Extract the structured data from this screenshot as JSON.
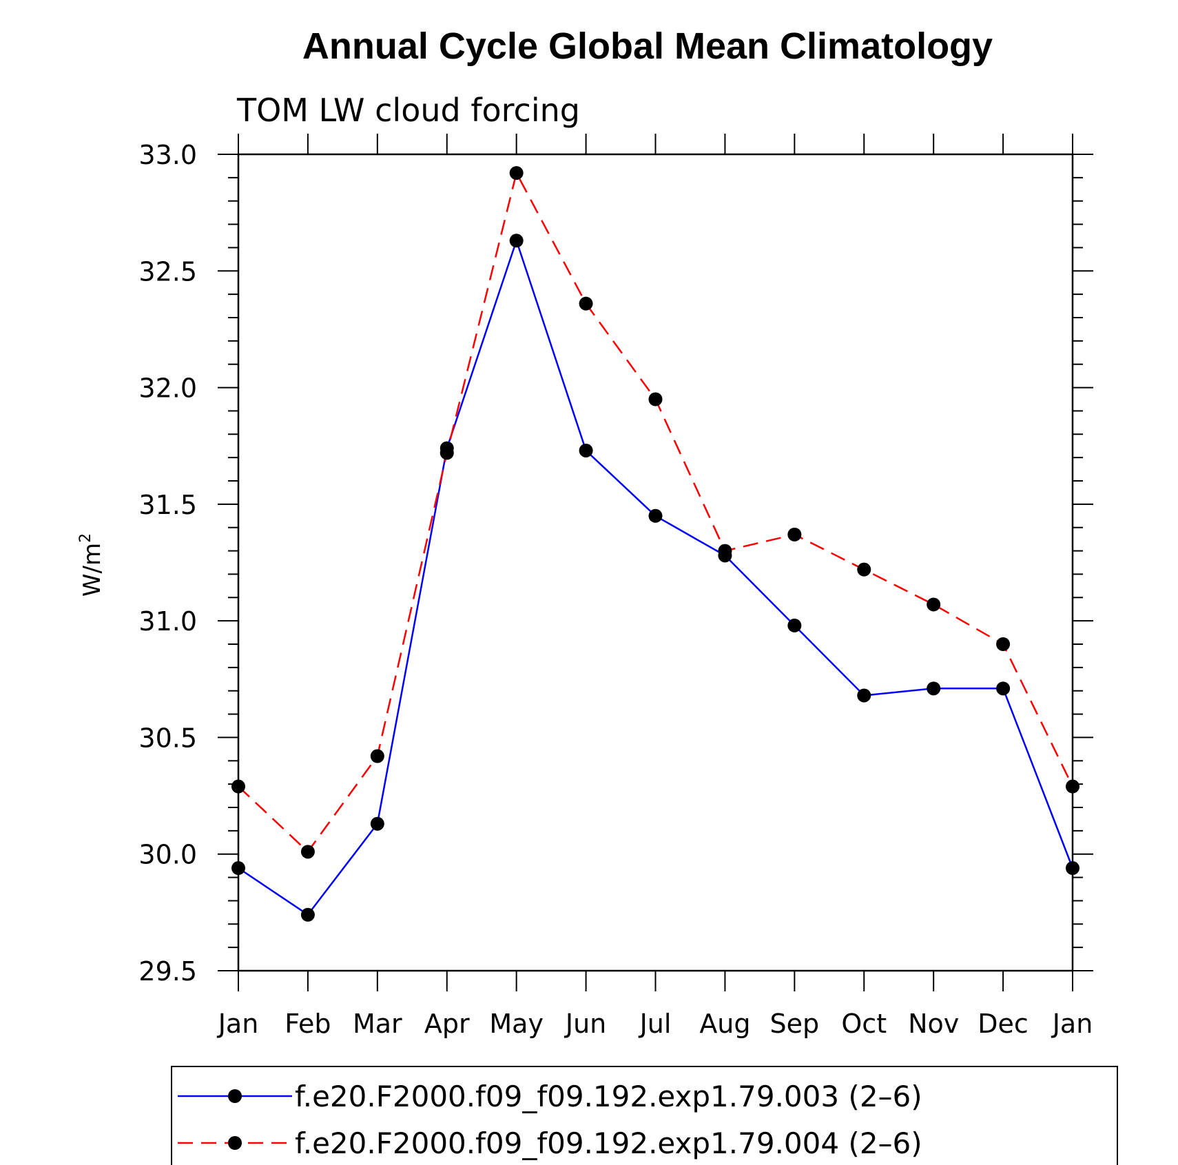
{
  "chart_data": {
    "type": "line",
    "title": "Annual Cycle Global Mean Climatology",
    "subtitle": "TOM LW cloud forcing",
    "ylabel_base": "W/m",
    "ylabel_sup": "2",
    "xlabel": "",
    "categories": [
      "Jan",
      "Feb",
      "Mar",
      "Apr",
      "May",
      "Jun",
      "Jul",
      "Aug",
      "Sep",
      "Oct",
      "Nov",
      "Dec",
      "Jan"
    ],
    "ylim": [
      29.5,
      33.0
    ],
    "yticks": [
      "29.5",
      "30.0",
      "30.5",
      "31.0",
      "31.5",
      "32.0",
      "32.5",
      "33.0"
    ],
    "grid": false,
    "legend_position": "bottom",
    "series": [
      {
        "name": "f.e20.F2000.f09_f09.192.exp1.79.003 (2–6)",
        "color": "#0000ff",
        "dash": "solid",
        "values": [
          29.94,
          29.74,
          30.13,
          31.74,
          32.63,
          31.73,
          31.45,
          31.28,
          30.98,
          30.68,
          30.71,
          30.71,
          29.94
        ]
      },
      {
        "name": "f.e20.F2000.f09_f09.192.exp1.79.004 (2–6)",
        "color": "#ff0000",
        "dash": "dashed",
        "values": [
          30.29,
          30.01,
          30.42,
          31.72,
          32.92,
          32.36,
          31.95,
          31.3,
          31.37,
          31.22,
          31.07,
          30.9,
          30.29
        ]
      }
    ]
  }
}
